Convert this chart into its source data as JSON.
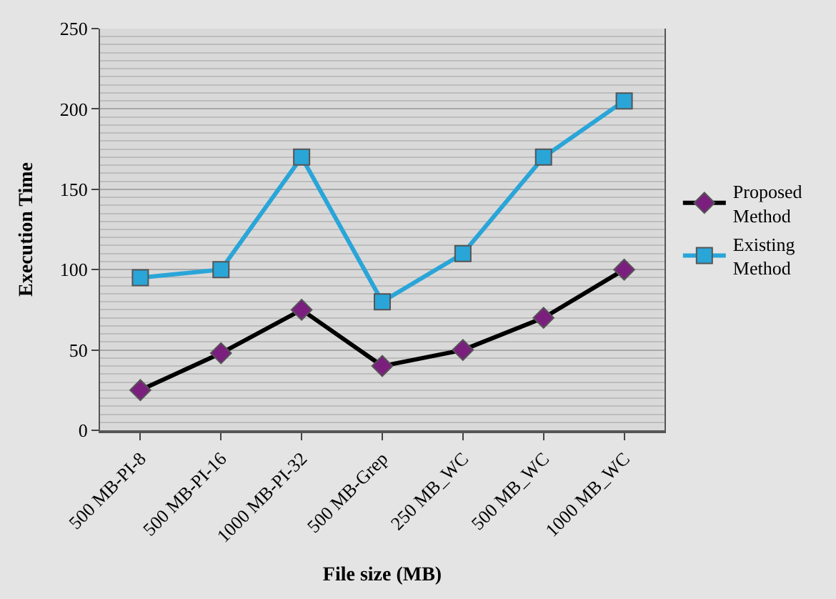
{
  "chart_data": {
    "type": "line",
    "xlabel": "File size (MB)",
    "ylabel": "Execution Time",
    "categories": [
      "500 MB-PI-8",
      "500 MB-PI-16",
      "1000 MB-PI-32",
      "500 MB-Grep",
      "250 MB_WC",
      "500 MB_WC",
      "1000 MB_WC"
    ],
    "series": [
      {
        "name": "Proposed Method",
        "color": "#000000",
        "colors": [
          "#7b1f7e",
          "#7b1f7e",
          "#7b1f7e",
          "#7b1f7e",
          "#7b1f7e",
          "#7b1f7e",
          "#7b1f7e"
        ],
        "marker": "diamond",
        "values": [
          25,
          48,
          75,
          40,
          50,
          70,
          100
        ]
      },
      {
        "name": "Existing Method",
        "color": "#2aa5d8",
        "marker": "square",
        "values": [
          95,
          100,
          170,
          80,
          110,
          170,
          205
        ]
      }
    ],
    "ylim": [
      0,
      250
    ],
    "yticks": [
      0,
      50,
      100,
      150,
      200,
      250
    ],
    "grid": "y",
    "legend": "right",
    "line_style": "solid"
  }
}
